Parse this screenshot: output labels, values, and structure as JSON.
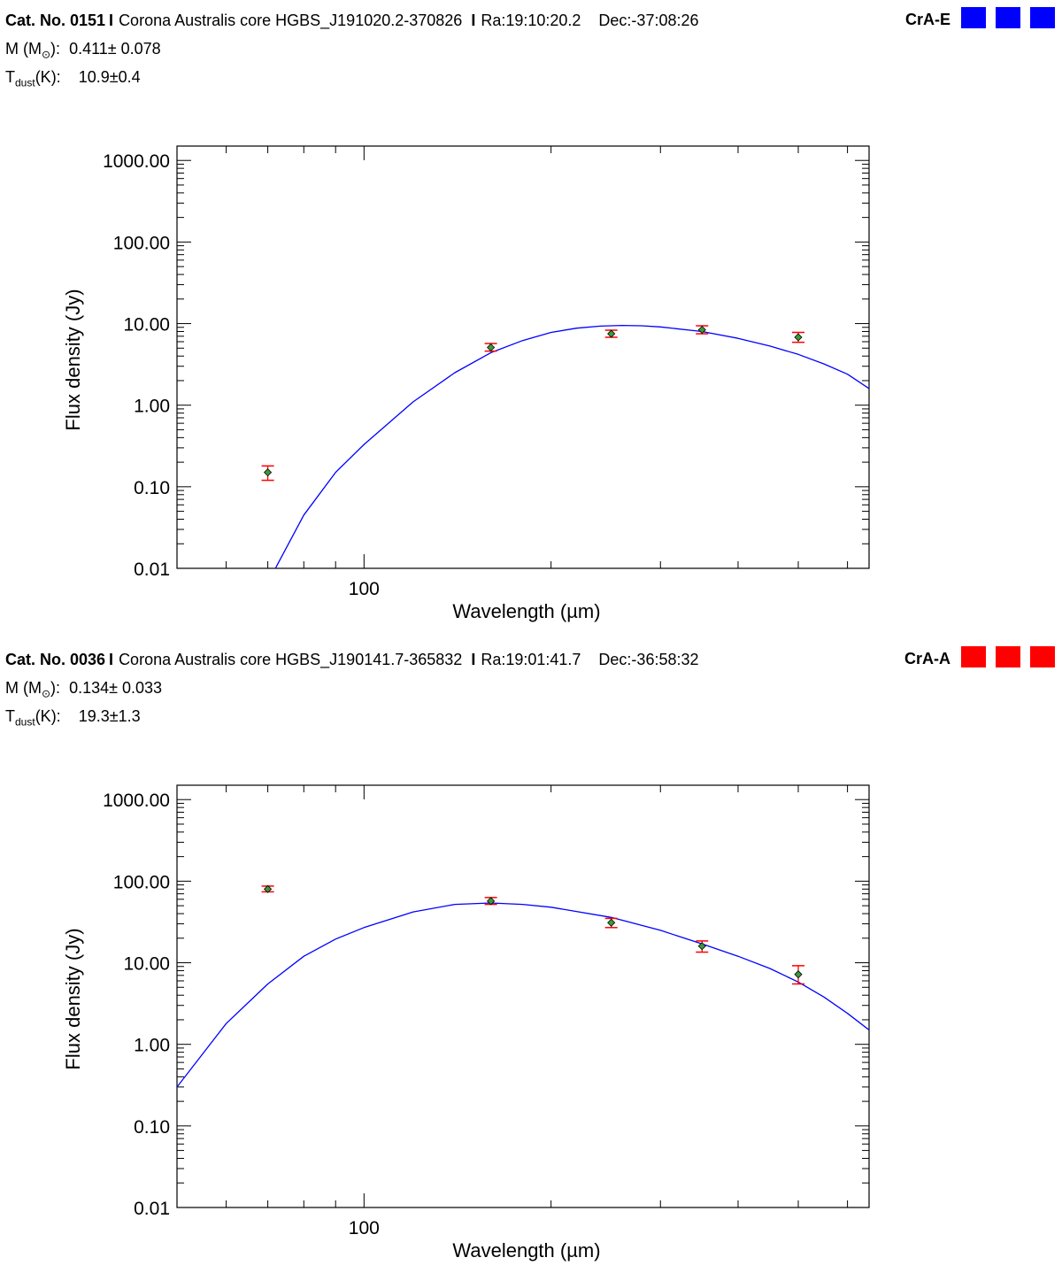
{
  "panels": [
    {
      "cat_label": "Cat. No. 0151",
      "sep": "I",
      "core": "Corona Australis core HGBS_J191020.2-370826",
      "sep2": "I",
      "ra": "Ra:19:10:20.2",
      "dec": "Dec:-37:08:26",
      "region": "CrA-E",
      "region_color": "#0000ff",
      "mass_label": "M (M",
      "mass_sun": "⊙",
      "mass_close": "):",
      "mass_value": "0.411± 0.078",
      "tdust_label": "T",
      "tdust_sub": "dust",
      "tdust_close": "(K):",
      "tdust_value": "10.9±0.4"
    },
    {
      "cat_label": "Cat. No. 0036",
      "sep": "I",
      "core": "Corona Australis core HGBS_J190141.7-365832",
      "sep2": "I",
      "ra": "Ra:19:01:41.7",
      "dec": "Dec:-36:58:32",
      "region": "CrA-A",
      "region_color": "#ff0000",
      "mass_label": "M (M",
      "mass_sun": "⊙",
      "mass_close": "):",
      "mass_value": "0.134± 0.033",
      "tdust_label": "T",
      "tdust_sub": "dust",
      "tdust_close": "(K):",
      "tdust_value": "19.3±1.3"
    }
  ],
  "chart_data": [
    {
      "type": "scatter",
      "xlabel": "Wavelength (µm)",
      "ylabel": "Flux density (Jy)",
      "xscale": "log",
      "yscale": "log",
      "xlim": [
        50,
        650
      ],
      "ylim": [
        0.01,
        1500
      ],
      "x_ticks": [
        {
          "value": 100,
          "label": "100"
        }
      ],
      "y_ticks": [
        {
          "value": 0.01,
          "label": "0.01"
        },
        {
          "value": 0.1,
          "label": "0.10"
        },
        {
          "value": 1,
          "label": "1.00"
        },
        {
          "value": 10,
          "label": "10.00"
        },
        {
          "value": 100,
          "label": "100.00"
        },
        {
          "value": 1000,
          "label": "1000.00"
        }
      ],
      "points": [
        {
          "x": 70,
          "y": 0.15,
          "ylow": 0.12,
          "yhigh": 0.18
        },
        {
          "x": 160,
          "y": 5.1,
          "ylow": 4.6,
          "yhigh": 5.7
        },
        {
          "x": 250,
          "y": 7.5,
          "ylow": 6.8,
          "yhigh": 8.3
        },
        {
          "x": 350,
          "y": 8.4,
          "ylow": 7.5,
          "yhigh": 9.4
        },
        {
          "x": 500,
          "y": 6.8,
          "ylow": 5.9,
          "yhigh": 7.8
        }
      ],
      "fit_curve": {
        "x": [
          72,
          80,
          90,
          100,
          120,
          140,
          160,
          180,
          200,
          220,
          240,
          260,
          280,
          300,
          350,
          400,
          450,
          500,
          550,
          600,
          650
        ],
        "y": [
          0.01,
          0.045,
          0.15,
          0.33,
          1.1,
          2.5,
          4.4,
          6.2,
          7.8,
          8.8,
          9.3,
          9.5,
          9.4,
          9.1,
          8.0,
          6.6,
          5.3,
          4.2,
          3.2,
          2.4,
          1.6
        ]
      },
      "point_color": "#3a9a3a",
      "errorbar_color": "#ff0000",
      "curve_color": "#0000ff"
    },
    {
      "type": "scatter",
      "xlabel": "Wavelength (µm)",
      "ylabel": "Flux density (Jy)",
      "xscale": "log",
      "yscale": "log",
      "xlim": [
        50,
        650
      ],
      "ylim": [
        0.01,
        1500
      ],
      "x_ticks": [
        {
          "value": 100,
          "label": "100"
        }
      ],
      "y_ticks": [
        {
          "value": 0.01,
          "label": "0.01"
        },
        {
          "value": 0.1,
          "label": "0.10"
        },
        {
          "value": 1,
          "label": "1.00"
        },
        {
          "value": 10,
          "label": "10.00"
        },
        {
          "value": 100,
          "label": "100.00"
        },
        {
          "value": 1000,
          "label": "1000.00"
        }
      ],
      "points": [
        {
          "x": 70,
          "y": 80,
          "ylow": 74,
          "yhigh": 87
        },
        {
          "x": 160,
          "y": 57,
          "ylow": 52,
          "yhigh": 63
        },
        {
          "x": 250,
          "y": 31,
          "ylow": 27,
          "yhigh": 35
        },
        {
          "x": 350,
          "y": 16,
          "ylow": 13.5,
          "yhigh": 18.5
        },
        {
          "x": 500,
          "y": 7.2,
          "ylow": 5.5,
          "yhigh": 9.2
        }
      ],
      "fit_curve": {
        "x": [
          50,
          60,
          70,
          80,
          90,
          100,
          120,
          140,
          160,
          180,
          200,
          250,
          300,
          350,
          400,
          450,
          500,
          550,
          600,
          650
        ],
        "y": [
          0.3,
          1.8,
          5.5,
          12,
          19.5,
          27,
          42,
          52,
          54,
          52,
          48,
          36,
          25,
          17,
          12,
          8.5,
          5.8,
          3.8,
          2.4,
          1.5
        ]
      },
      "point_color": "#3a9a3a",
      "errorbar_color": "#ff0000",
      "curve_color": "#0000ff"
    }
  ]
}
